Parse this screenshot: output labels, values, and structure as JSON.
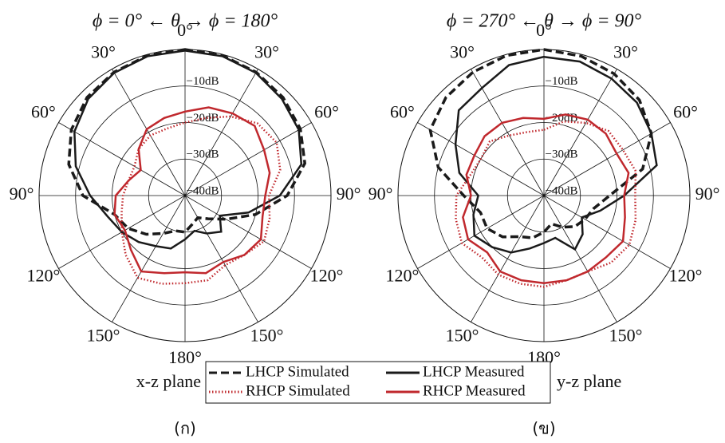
{
  "chart_data": [
    {
      "type": "polar",
      "title": "ϕ = 0° ← θ → ϕ = 180°",
      "caption": "(ก)",
      "plane_label": "x-z plane",
      "theta": [
        0,
        15,
        30,
        45,
        60,
        75,
        90,
        105,
        120,
        135,
        150,
        165,
        180,
        195,
        210,
        225,
        240,
        255,
        270,
        285,
        300,
        315,
        330,
        345
      ],
      "rlim": [
        -40,
        0
      ],
      "rticks": [
        {
          "value": -10,
          "label": "−10dB"
        },
        {
          "value": -20,
          "label": "−20dB"
        },
        {
          "value": -30,
          "label": "−30dB"
        },
        {
          "value": -40,
          "label": "−40dB"
        }
      ],
      "thetaticks": [
        {
          "value": 0,
          "label": "0°"
        },
        {
          "value": 30,
          "label": "30°"
        },
        {
          "value": 60,
          "label": "60°"
        },
        {
          "value": 90,
          "label": "90°"
        },
        {
          "value": 120,
          "label": "120°"
        },
        {
          "value": 150,
          "label": "150°"
        },
        {
          "value": 180,
          "label": "180°"
        },
        {
          "value": 210,
          "label": "150°"
        },
        {
          "value": 240,
          "label": "120°"
        },
        {
          "value": 270,
          "label": "90°"
        },
        {
          "value": 300,
          "label": "60°"
        },
        {
          "value": 330,
          "label": "30°"
        }
      ],
      "series": [
        {
          "name": "LHCP Simulated",
          "color": "#1a1a1a",
          "dash": "dashed",
          "values": [
            0,
            -0.3,
            -1,
            -2,
            -3.5,
            -6,
            -12,
            -20,
            -27,
            -31,
            -33,
            -32,
            -30,
            -30,
            -28,
            -25,
            -22,
            -20,
            -12,
            -7,
            -4,
            -2,
            -1,
            -0.3
          ]
        },
        {
          "name": "LHCP Measured",
          "color": "#1a1a1a",
          "dash": "solid",
          "values": [
            -0.3,
            -0.5,
            -1.2,
            -2.5,
            -4,
            -7,
            -14,
            -22,
            -29,
            -26,
            -28,
            -30,
            -28,
            -25,
            -24,
            -22,
            -20,
            -18,
            -14,
            -9,
            -5,
            -2.5,
            -1.2,
            -0.5
          ]
        },
        {
          "name": "RHCP Simulated",
          "color": "#c0282d",
          "dash": "dotted",
          "values": [
            -20,
            -18,
            -15,
            -12,
            -11,
            -13,
            -17,
            -16,
            -15,
            -17,
            -18,
            -16,
            -16,
            -15,
            -14,
            -17,
            -20,
            -22,
            -23,
            -24,
            -24,
            -22,
            -21,
            -21
          ]
        },
        {
          "name": "RHCP Measured",
          "color": "#c0282d",
          "dash": "solid",
          "values": [
            -17,
            -15,
            -14,
            -13,
            -15,
            -16,
            -18,
            -18,
            -16,
            -17,
            -19,
            -18,
            -19,
            -18,
            -16,
            -19,
            -21,
            -20,
            -21,
            -24,
            -26,
            -22,
            -19,
            -18
          ]
        }
      ]
    },
    {
      "type": "polar",
      "title": "ϕ = 270° ← θ → ϕ = 90°",
      "caption": "(ข)",
      "plane_label": "y-z plane",
      "theta": [
        0,
        15,
        30,
        45,
        60,
        75,
        90,
        105,
        120,
        135,
        150,
        165,
        180,
        195,
        210,
        225,
        240,
        255,
        270,
        285,
        300,
        315,
        330,
        345
      ],
      "rlim": [
        -40,
        0
      ],
      "rticks": [
        {
          "value": -10,
          "label": "−10dB"
        },
        {
          "value": -20,
          "label": "−20dB"
        },
        {
          "value": -30,
          "label": "−30dB"
        },
        {
          "value": -40,
          "label": "−40dB"
        }
      ],
      "thetaticks": [
        {
          "value": 0,
          "label": "0°"
        },
        {
          "value": 30,
          "label": "30°"
        },
        {
          "value": 60,
          "label": "60°"
        },
        {
          "value": 90,
          "label": "90°"
        },
        {
          "value": 120,
          "label": "120°"
        },
        {
          "value": 150,
          "label": "150°"
        },
        {
          "value": 180,
          "label": "180°"
        },
        {
          "value": 210,
          "label": "150°"
        },
        {
          "value": 240,
          "label": "120°"
        },
        {
          "value": 270,
          "label": "90°"
        },
        {
          "value": 300,
          "label": "60°"
        },
        {
          "value": 330,
          "label": "30°"
        }
      ],
      "series": [
        {
          "color": "#1a1a1a",
          "dash": "dashed",
          "values": [
            0,
            -0.5,
            -1.5,
            -3,
            -6,
            -12,
            -22,
            -26,
            -27,
            -28,
            -30,
            -32,
            -30,
            -28,
            -27,
            -24,
            -22,
            -22,
            -18,
            -10,
            -4,
            -2,
            -1,
            -0.3
          ]
        },
        {
          "color": "#1a1a1a",
          "dash": "solid",
          "values": [
            -2,
            -2,
            -3,
            -4,
            -6,
            -8,
            -18,
            -24,
            -28,
            -25,
            -23,
            -28,
            -27,
            -25,
            -22,
            -20,
            -18,
            -20,
            -22,
            -16,
            -12,
            -7,
            -6,
            -3
          ]
        },
        {
          "color": "#c0282d",
          "dash": "dotted",
          "values": [
            -22,
            -19,
            -17,
            -15,
            -15,
            -14,
            -15,
            -14,
            -13,
            -14,
            -16,
            -16,
            -15,
            -15,
            -15,
            -16,
            -14,
            -15,
            -16,
            -19,
            -20,
            -19,
            -21,
            -22
          ]
        },
        {
          "color": "#c0282d",
          "dash": "solid",
          "values": [
            -19,
            -17,
            -16,
            -16,
            -17,
            -16,
            -18,
            -17,
            -15,
            -16,
            -16,
            -16,
            -16,
            -16,
            -16,
            -18,
            -16,
            -17,
            -20,
            -18,
            -18,
            -17,
            -17,
            -18
          ]
        }
      ]
    }
  ]
}
